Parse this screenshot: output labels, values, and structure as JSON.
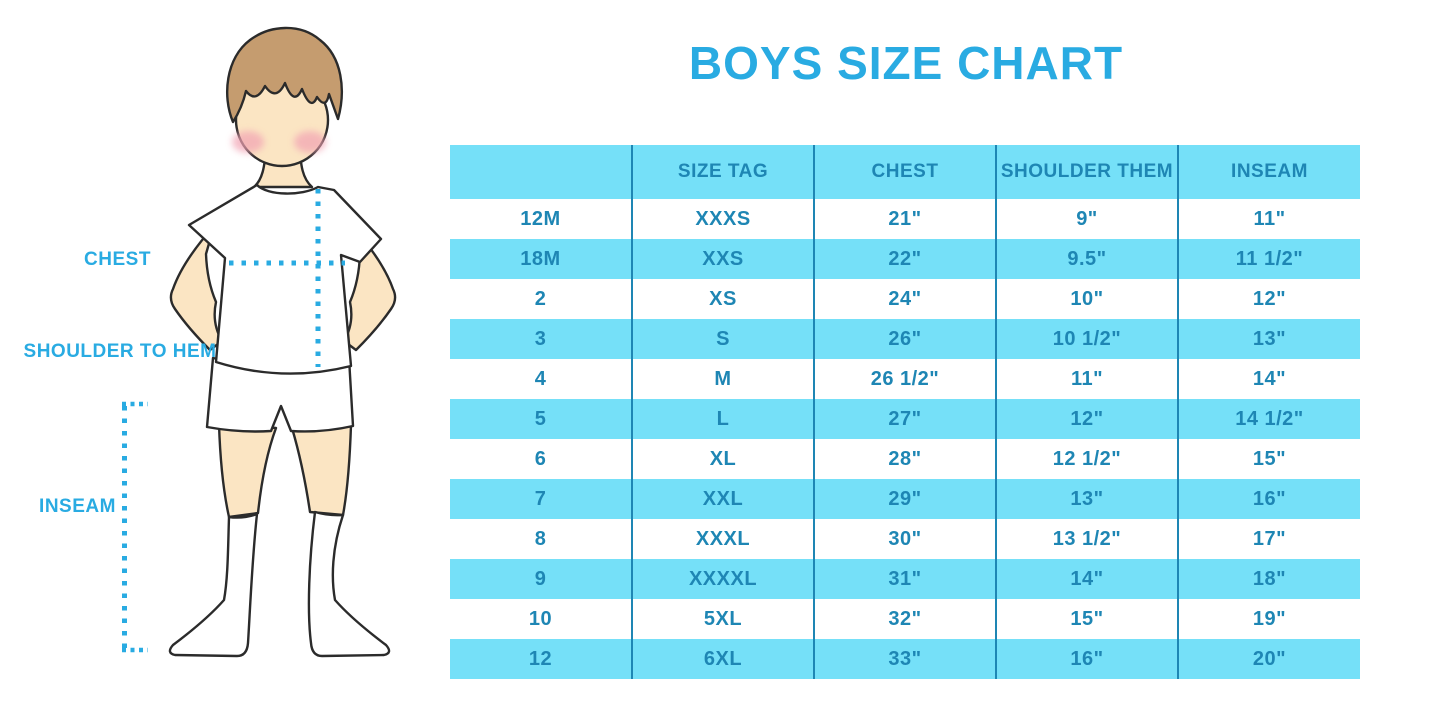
{
  "title": "BOYS SIZE CHART",
  "figure": {
    "description": "boy-with-measurement-lines",
    "labels": {
      "chest": "CHEST",
      "shoulder_to_hem": "SHOULDER TO HEM",
      "inseam": "INSEAM"
    }
  },
  "colors": {
    "accent_blue": "#29ABE2",
    "band_cyan": "#75E0F8",
    "table_text_blue": "#1E86B4",
    "grid_line_blue": "#1E86B4",
    "skin": "#FBE5C3",
    "hair_brown": "#C59C6F",
    "blush_pink": "#F2A3B3",
    "outline": "#2B2B2B"
  },
  "chart_data": {
    "type": "table",
    "title": "BOYS SIZE CHART",
    "columns": [
      "",
      "SIZE TAG",
      "CHEST",
      "SHOULDER THEM",
      "INSEAM"
    ],
    "rows": [
      [
        "12M",
        "XXXS",
        "21\"",
        "9\"",
        "11\""
      ],
      [
        "18M",
        "XXS",
        "22\"",
        "9.5\"",
        "11 1/2\""
      ],
      [
        "2",
        "XS",
        "24\"",
        "10\"",
        "12\""
      ],
      [
        "3",
        "S",
        "26\"",
        "10 1/2\"",
        "13\""
      ],
      [
        "4",
        "M",
        "26 1/2\"",
        "11\"",
        "14\""
      ],
      [
        "5",
        "L",
        "27\"",
        "12\"",
        "14 1/2\""
      ],
      [
        "6",
        "XL",
        "28\"",
        "12 1/2\"",
        "15\""
      ],
      [
        "7",
        "XXL",
        "29\"",
        "13\"",
        "16\""
      ],
      [
        "8",
        "XXXL",
        "30\"",
        "13 1/2\"",
        "17\""
      ],
      [
        "9",
        "XXXXL",
        "31\"",
        "14\"",
        "18\""
      ],
      [
        "10",
        "5XL",
        "32\"",
        "15\"",
        "19\""
      ],
      [
        "12",
        "6XL",
        "33\"",
        "16\"",
        "20\""
      ]
    ],
    "layout": {
      "striped_rows": true,
      "header_background": "cyan-band",
      "column_separators": "vertical-blue-lines"
    }
  }
}
